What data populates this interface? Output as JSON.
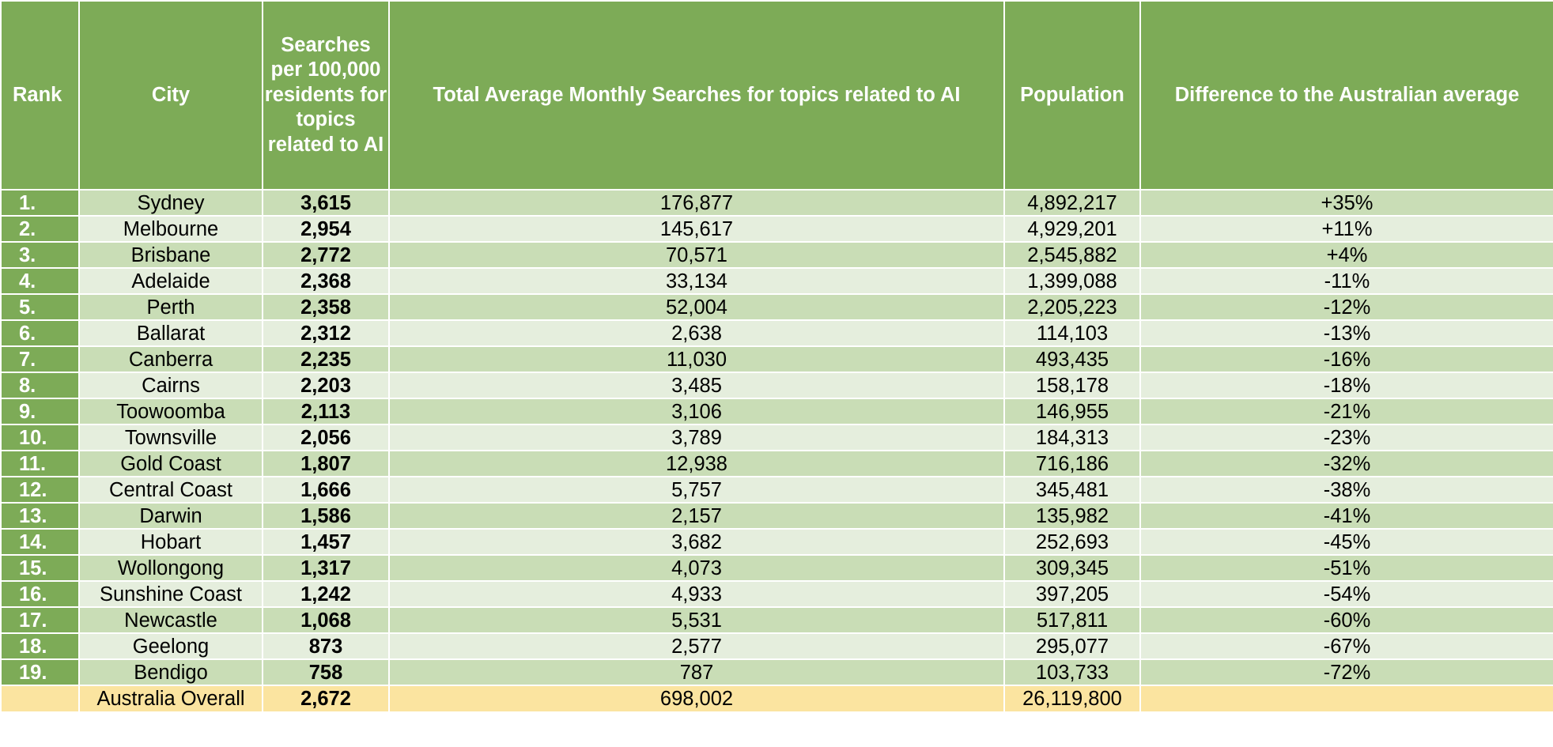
{
  "header": {
    "rank": "Rank",
    "city": "City",
    "searches_per_100k": "Searches per 100,000 residents for topics related to AI",
    "total_monthly": "Total Average Monthly Searches for topics related to AI",
    "population": "Population",
    "difference": "Difference to the Australian average"
  },
  "rows": [
    {
      "rank": "1.",
      "city": "Sydney",
      "per100k": "3,615",
      "total": "176,877",
      "population": "4,892,217",
      "difference": "+35%"
    },
    {
      "rank": "2.",
      "city": "Melbourne",
      "per100k": "2,954",
      "total": "145,617",
      "population": "4,929,201",
      "difference": "+11%"
    },
    {
      "rank": "3.",
      "city": "Brisbane",
      "per100k": "2,772",
      "total": "70,571",
      "population": "2,545,882",
      "difference": "+4%"
    },
    {
      "rank": "4.",
      "city": "Adelaide",
      "per100k": "2,368",
      "total": "33,134",
      "population": "1,399,088",
      "difference": "-11%"
    },
    {
      "rank": "5.",
      "city": "Perth",
      "per100k": "2,358",
      "total": "52,004",
      "population": "2,205,223",
      "difference": "-12%"
    },
    {
      "rank": "6.",
      "city": "Ballarat",
      "per100k": "2,312",
      "total": "2,638",
      "population": "114,103",
      "difference": "-13%"
    },
    {
      "rank": "7.",
      "city": "Canberra",
      "per100k": "2,235",
      "total": "11,030",
      "population": "493,435",
      "difference": "-16%"
    },
    {
      "rank": "8.",
      "city": "Cairns",
      "per100k": "2,203",
      "total": "3,485",
      "population": "158,178",
      "difference": "-18%"
    },
    {
      "rank": "9.",
      "city": "Toowoomba",
      "per100k": "2,113",
      "total": "3,106",
      "population": "146,955",
      "difference": "-21%"
    },
    {
      "rank": "10.",
      "city": "Townsville",
      "per100k": "2,056",
      "total": "3,789",
      "population": "184,313",
      "difference": "-23%"
    },
    {
      "rank": "11.",
      "city": "Gold Coast",
      "per100k": "1,807",
      "total": "12,938",
      "population": "716,186",
      "difference": "-32%"
    },
    {
      "rank": "12.",
      "city": "Central Coast",
      "per100k": "1,666",
      "total": "5,757",
      "population": "345,481",
      "difference": "-38%"
    },
    {
      "rank": "13.",
      "city": "Darwin",
      "per100k": "1,586",
      "total": "2,157",
      "population": "135,982",
      "difference": "-41%"
    },
    {
      "rank": "14.",
      "city": "Hobart",
      "per100k": "1,457",
      "total": "3,682",
      "population": "252,693",
      "difference": "-45%"
    },
    {
      "rank": "15.",
      "city": "Wollongong",
      "per100k": "1,317",
      "total": "4,073",
      "population": "309,345",
      "difference": "-51%"
    },
    {
      "rank": "16.",
      "city": "Sunshine Coast",
      "per100k": "1,242",
      "total": "4,933",
      "population": "397,205",
      "difference": "-54%"
    },
    {
      "rank": "17.",
      "city": "Newcastle",
      "per100k": "1,068",
      "total": "5,531",
      "population": "517,811",
      "difference": "-60%"
    },
    {
      "rank": "18.",
      "city": "Geelong",
      "per100k": "873",
      "total": "2,577",
      "population": "295,077",
      "difference": "-67%"
    },
    {
      "rank": "19.",
      "city": "Bendigo",
      "per100k": "758",
      "total": "787",
      "population": "103,733",
      "difference": "-72%"
    }
  ],
  "total": {
    "label": "Australia Overall",
    "per100k": "2,672",
    "total": "698,002",
    "population": "26,119,800"
  },
  "colors": {
    "header_green": "#7dab57",
    "row_dark": "#c9ddb6",
    "row_light": "#e5eedd",
    "total_yellow": "#fbe4a0"
  }
}
